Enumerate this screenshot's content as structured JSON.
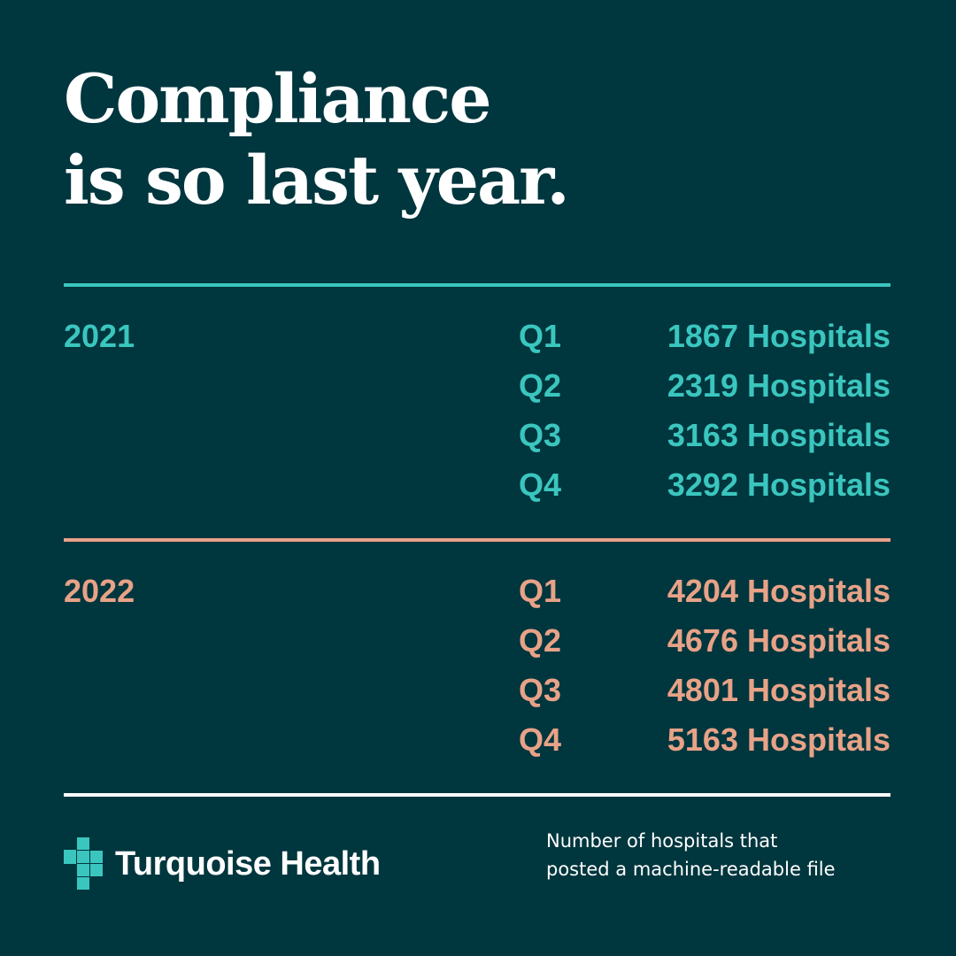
{
  "headline": {
    "line1": "Compliance",
    "line2": "is so last year."
  },
  "colors": {
    "background": "#00363e",
    "accent_2021": "#3ac6be",
    "accent_2022": "#e8a287",
    "footer_rule": "#ffffff"
  },
  "years": [
    {
      "year": "2021",
      "rows": [
        {
          "quarter": "Q1",
          "count": "1867 Hospitals"
        },
        {
          "quarter": "Q2",
          "count": "2319 Hospitals"
        },
        {
          "quarter": "Q3",
          "count": "3163 Hospitals"
        },
        {
          "quarter": "Q4",
          "count": "3292 Hospitals"
        }
      ]
    },
    {
      "year": "2022",
      "rows": [
        {
          "quarter": "Q1",
          "count": "4204 Hospitals"
        },
        {
          "quarter": "Q2",
          "count": "4676 Hospitals"
        },
        {
          "quarter": "Q3",
          "count": "4801 Hospitals"
        },
        {
          "quarter": "Q4",
          "count": "5163 Hospitals"
        }
      ]
    }
  ],
  "footer": {
    "logo_icon": "cross-icon",
    "brand": "Turquoise Health",
    "caption_line1": "Number of hospitals that",
    "caption_line2": "posted a machine-readable file"
  }
}
